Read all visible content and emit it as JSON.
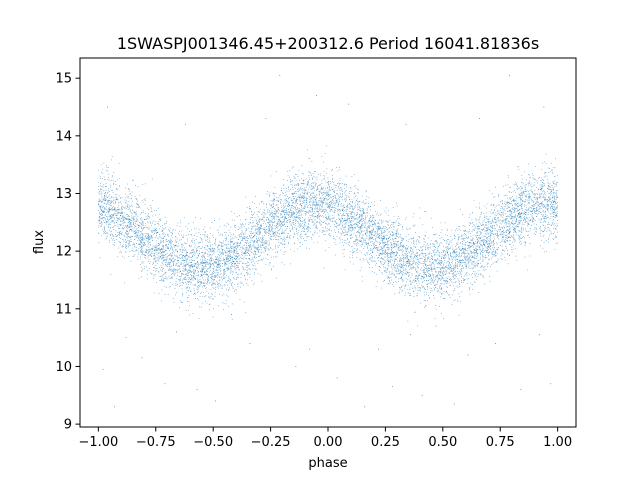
{
  "chart_data": {
    "type": "scatter",
    "title": "1SWASPJ001346.45+200312.6 Period 16041.81836s",
    "xlabel": "phase",
    "ylabel": "flux",
    "xlim": [
      -1.08,
      1.08
    ],
    "ylim": [
      8.95,
      15.35
    ],
    "x_ticks": [
      -1.0,
      -0.75,
      -0.5,
      -0.25,
      0.0,
      0.25,
      0.5,
      0.75,
      1.0
    ],
    "x_tick_labels": [
      "−1.00",
      "−0.75",
      "−0.50",
      "−0.25",
      "0.00",
      "0.25",
      "0.50",
      "0.75",
      "1.00"
    ],
    "y_ticks": [
      9,
      10,
      11,
      12,
      13,
      14,
      15
    ],
    "y_tick_labels": [
      "9",
      "10",
      "11",
      "12",
      "13",
      "14",
      "15"
    ],
    "grid": false,
    "point_color": "#1f77b4",
    "model": {
      "description_values": "phase-folded periodic light curve, two cycles over phase -1 to 1",
      "mean_flux": 12.25,
      "semi_amplitude": 0.55,
      "maximum_phase": -0.05,
      "minimum_phase": 0.4,
      "scatter_sigma": 0.3,
      "n_points": 9000
    },
    "outliers": [
      {
        "x": -0.98,
        "y": 9.95
      },
      {
        "x": -0.93,
        "y": 9.3
      },
      {
        "x": -0.88,
        "y": 10.5
      },
      {
        "x": -0.81,
        "y": 10.15
      },
      {
        "x": -0.71,
        "y": 9.7
      },
      {
        "x": -0.62,
        "y": 14.2
      },
      {
        "x": -0.57,
        "y": 9.6
      },
      {
        "x": -0.49,
        "y": 9.4
      },
      {
        "x": -0.42,
        "y": 10.9
      },
      {
        "x": -0.34,
        "y": 10.4
      },
      {
        "x": -0.27,
        "y": 14.3
      },
      {
        "x": -0.21,
        "y": 15.05
      },
      {
        "x": -0.14,
        "y": 10.0
      },
      {
        "x": -0.08,
        "y": 10.3
      },
      {
        "x": 0.04,
        "y": 9.8
      },
      {
        "x": 0.09,
        "y": 14.55
      },
      {
        "x": 0.16,
        "y": 9.3
      },
      {
        "x": 0.22,
        "y": 10.3
      },
      {
        "x": 0.28,
        "y": 9.65
      },
      {
        "x": 0.34,
        "y": 14.2
      },
      {
        "x": 0.41,
        "y": 9.5
      },
      {
        "x": 0.47,
        "y": 10.7
      },
      {
        "x": 0.55,
        "y": 9.35
      },
      {
        "x": 0.61,
        "y": 10.2
      },
      {
        "x": 0.66,
        "y": 14.3
      },
      {
        "x": 0.73,
        "y": 10.4
      },
      {
        "x": 0.79,
        "y": 15.05
      },
      {
        "x": 0.84,
        "y": 9.6
      },
      {
        "x": 0.92,
        "y": 10.55
      },
      {
        "x": 0.97,
        "y": 9.7
      },
      {
        "x": -0.66,
        "y": 10.6
      },
      {
        "x": 0.36,
        "y": 10.55
      },
      {
        "x": -0.05,
        "y": 14.7
      },
      {
        "x": 0.94,
        "y": 14.5
      },
      {
        "x": -0.96,
        "y": 14.5
      }
    ]
  }
}
